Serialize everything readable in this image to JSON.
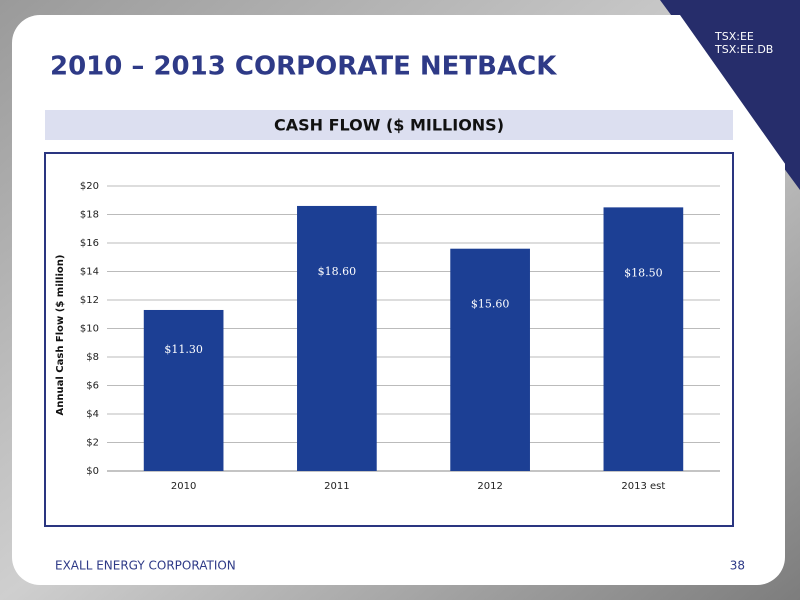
{
  "ticker": [
    "TSX:EE",
    "TSX:EE.DB"
  ],
  "title": "2010 – 2013 CORPORATE NETBACK",
  "subtitle": "CASH FLOW ($ MILLIONS)",
  "footer": {
    "company": "EXALL ENERGY CORPORATION",
    "page": "38"
  },
  "chart_data": {
    "type": "bar",
    "ylabel": "Annual Cash Flow ($ million)",
    "categories": [
      "2010",
      "2011",
      "2012",
      "2013 est"
    ],
    "values": [
      11.3,
      18.6,
      15.6,
      18.5
    ],
    "value_labels": [
      "$11.30",
      "$18.60",
      "$15.60",
      "$18.50"
    ],
    "color": "#1c3f94",
    "ylim": [
      0,
      20
    ],
    "yticks": [
      {
        "value": 0,
        "label": "$0"
      },
      {
        "value": 2,
        "label": "$2"
      },
      {
        "value": 4,
        "label": "$4"
      },
      {
        "value": 6,
        "label": "$6"
      },
      {
        "value": 8,
        "label": "$8"
      },
      {
        "value": 10,
        "label": "$10"
      },
      {
        "value": 12,
        "label": "$12"
      },
      {
        "value": 14,
        "label": "$14"
      },
      {
        "value": 16,
        "label": "$16"
      },
      {
        "value": 18,
        "label": "$18"
      },
      {
        "value": 20,
        "label": "$20"
      }
    ],
    "grid": true
  }
}
